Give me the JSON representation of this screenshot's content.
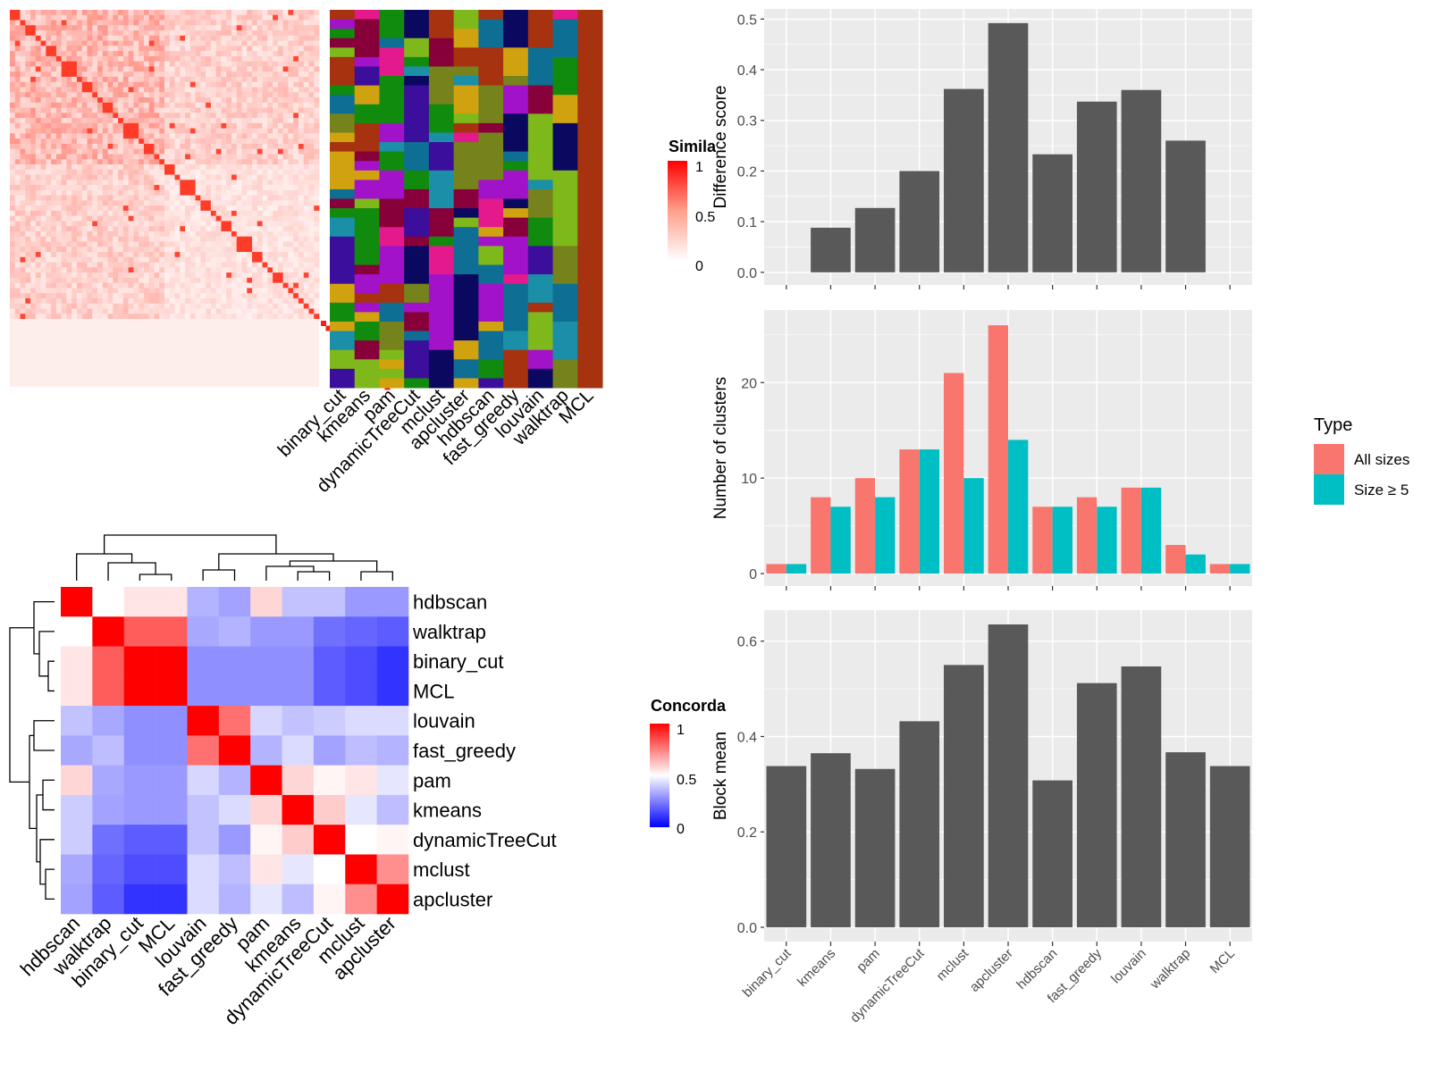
{
  "colors": {
    "bar_gray": "#595959",
    "panel_bg": "#ebebeb",
    "grid": "#ffffff",
    "all_sizes": "#F8766D",
    "size_ge_5": "#00BFC4",
    "heat_high": "#ff0000",
    "heat_mid": "#ffffff",
    "heat_low": "#0000ff"
  },
  "methods": [
    "binary_cut",
    "kmeans",
    "pam",
    "dynamicTreeCut",
    "mclust",
    "apcluster",
    "hdbscan",
    "fast_greedy",
    "louvain",
    "walktrap",
    "MCL"
  ],
  "similarity_legend": {
    "title": "Simila",
    "ticks": [
      "1",
      "0.5",
      "0"
    ]
  },
  "concordance_legend": {
    "title": "Concorda",
    "ticks": [
      "1",
      "0.5",
      "0"
    ]
  },
  "concordance_order": [
    "hdbscan",
    "walktrap",
    "binary_cut",
    "MCL",
    "louvain",
    "fast_greedy",
    "pam",
    "kmeans",
    "dynamicTreeCut",
    "mclust",
    "apcluster"
  ],
  "concordance_matrix": [
    [
      1.0,
      0.5,
      0.55,
      0.55,
      0.35,
      0.32,
      0.58,
      0.38,
      0.38,
      0.3,
      0.3
    ],
    [
      0.5,
      1.0,
      0.82,
      0.82,
      0.33,
      0.35,
      0.3,
      0.3,
      0.22,
      0.2,
      0.18
    ],
    [
      0.55,
      0.82,
      1.0,
      1.0,
      0.28,
      0.28,
      0.28,
      0.28,
      0.18,
      0.15,
      0.1
    ],
    [
      0.55,
      0.82,
      1.0,
      1.0,
      0.28,
      0.28,
      0.28,
      0.28,
      0.18,
      0.15,
      0.1
    ],
    [
      0.38,
      0.33,
      0.28,
      0.28,
      1.0,
      0.78,
      0.42,
      0.38,
      0.4,
      0.43,
      0.43
    ],
    [
      0.33,
      0.37,
      0.28,
      0.28,
      0.78,
      1.0,
      0.35,
      0.43,
      0.32,
      0.37,
      0.35
    ],
    [
      0.58,
      0.33,
      0.3,
      0.3,
      0.42,
      0.35,
      1.0,
      0.58,
      0.52,
      0.55,
      0.45
    ],
    [
      0.4,
      0.32,
      0.3,
      0.3,
      0.38,
      0.43,
      0.58,
      1.0,
      0.6,
      0.45,
      0.37
    ],
    [
      0.4,
      0.22,
      0.18,
      0.18,
      0.38,
      0.3,
      0.52,
      0.6,
      1.0,
      0.5,
      0.52
    ],
    [
      0.33,
      0.2,
      0.15,
      0.15,
      0.43,
      0.37,
      0.55,
      0.45,
      0.5,
      1.0,
      0.72
    ],
    [
      0.32,
      0.18,
      0.1,
      0.1,
      0.43,
      0.35,
      0.45,
      0.37,
      0.52,
      0.72,
      1.0
    ]
  ],
  "chart_data": [
    {
      "type": "bar",
      "categories": [
        "binary_cut",
        "kmeans",
        "pam",
        "dynamicTreeCut",
        "mclust",
        "apcluster",
        "hdbscan",
        "fast_greedy",
        "louvain",
        "walktrap",
        "MCL"
      ],
      "values": [
        0,
        0.088,
        0.127,
        0.2,
        0.362,
        0.492,
        0.233,
        0.337,
        0.36,
        0.26,
        0
      ],
      "ylabel": "Difference score",
      "yticks": [
        "0.0",
        "0.1",
        "0.2",
        "0.3",
        "0.4",
        "0.5"
      ],
      "ylim": [
        -0.025,
        0.52
      ]
    },
    {
      "type": "bar",
      "categories": [
        "binary_cut",
        "kmeans",
        "pam",
        "dynamicTreeCut",
        "mclust",
        "apcluster",
        "hdbscan",
        "fast_greedy",
        "louvain",
        "walktrap",
        "MCL"
      ],
      "series": [
        {
          "name": "All sizes",
          "values": [
            1,
            8,
            10,
            13,
            21,
            26,
            7,
            8,
            9,
            3,
            1
          ]
        },
        {
          "name": "Size ≥ 5",
          "values": [
            1,
            7,
            8,
            13,
            10,
            14,
            7,
            7,
            9,
            2,
            1
          ]
        }
      ],
      "ylabel": "Number of clusters",
      "yticks": [
        "0",
        "10",
        "20"
      ],
      "ylim": [
        -1.3,
        27.6
      ],
      "legend": {
        "title": "Type",
        "position": "right"
      }
    },
    {
      "type": "bar",
      "categories": [
        "binary_cut",
        "kmeans",
        "pam",
        "dynamicTreeCut",
        "mclust",
        "apcluster",
        "hdbscan",
        "fast_greedy",
        "louvain",
        "walktrap",
        "MCL"
      ],
      "values": [
        0.338,
        0.365,
        0.332,
        0.432,
        0.55,
        0.635,
        0.308,
        0.512,
        0.547,
        0.367,
        0.338
      ],
      "ylabel": "Block mean",
      "yticks": [
        "0.0",
        "0.2",
        "0.4",
        "0.6"
      ],
      "ylim": [
        -0.03,
        0.665
      ]
    }
  ]
}
